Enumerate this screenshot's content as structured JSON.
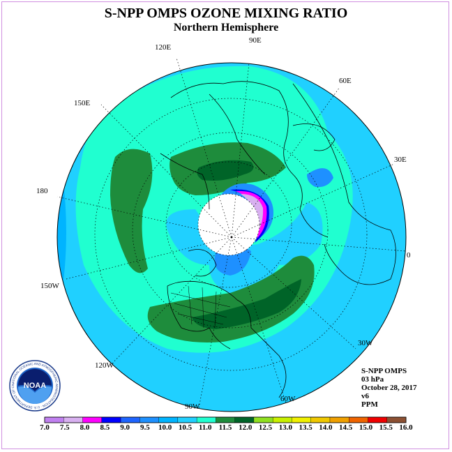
{
  "title": "S-NPP OMPS OZONE MIXING RATIO",
  "subtitle": "Northern Hemisphere",
  "longitude_labels": [
    "120E",
    "90E",
    "60E",
    "150E",
    "30E",
    "180",
    "0",
    "150W",
    "30W",
    "120W",
    "90W",
    "60W"
  ],
  "info": {
    "instrument": "S-NPP OMPS",
    "level": "03 hPa",
    "date": "October 28, 2017",
    "version": "v6",
    "units": "PPM"
  },
  "colorbar": {
    "ticks": [
      "7.0",
      "7.5",
      "8.0",
      "8.5",
      "9.0",
      "9.5",
      "10.0",
      "10.5",
      "11.0",
      "11.5",
      "12.0",
      "12.5",
      "13.0",
      "13.5",
      "14.0",
      "14.5",
      "15.0",
      "15.5",
      "16.0"
    ],
    "colors": [
      "#c080f0",
      "#d8b0f0",
      "#ff00ff",
      "#0000ff",
      "#1e64ff",
      "#1e90ff",
      "#00b4ff",
      "#20d0ff",
      "#20ffd0",
      "#1e8c3c",
      "#006428",
      "#90e020",
      "#c8f000",
      "#f0f000",
      "#f0c800",
      "#f0a000",
      "#f06400",
      "#f00000",
      "#8c5032"
    ]
  },
  "logo": {
    "text": "NOAA",
    "ring_text": "NATIONAL OCEANIC AND ATMOSPHERIC ADMINISTRATION · U.S. DEPARTMENT OF COMMERCE"
  }
}
